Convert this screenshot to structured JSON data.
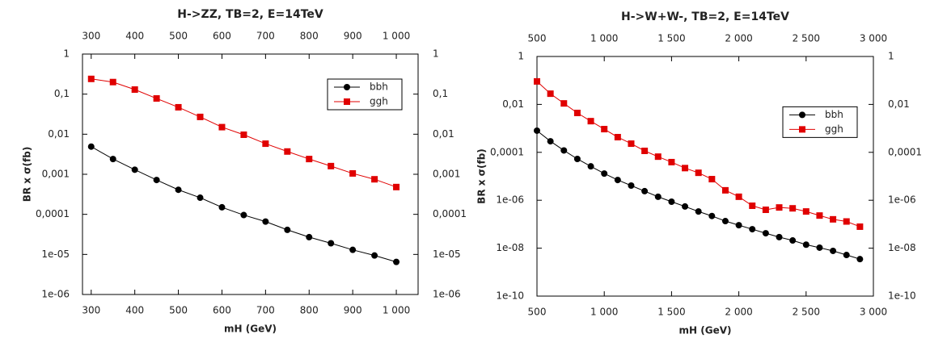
{
  "chart_data": [
    {
      "type": "line",
      "title": "H->ZZ, TB=2, E=14TeV",
      "x_label": "mH (GeV)",
      "y_label": "BR x σ(fb)",
      "x": [
        300,
        350,
        400,
        450,
        500,
        550,
        600,
        650,
        700,
        750,
        800,
        850,
        900,
        950,
        1000
      ],
      "series": [
        {
          "name": "bbh",
          "color": "#000000",
          "marker": "circle",
          "values": [
            0.0049,
            0.0024,
            0.0013,
            0.00072,
            0.00041,
            0.00026,
            0.00015,
            9.6e-05,
            6.6e-05,
            4.1e-05,
            2.7e-05,
            1.9e-05,
            1.3e-05,
            9.4e-06,
            6.5e-06
          ]
        },
        {
          "name": "ggh",
          "color": "#e00000",
          "marker": "square",
          "values": [
            0.24,
            0.2,
            0.13,
            0.078,
            0.047,
            0.027,
            0.015,
            0.0097,
            0.0058,
            0.0037,
            0.0024,
            0.0016,
            0.00105,
            0.00075,
            0.00048
          ]
        }
      ],
      "xlim": [
        280,
        1050
      ],
      "xticks": [
        300,
        400,
        500,
        600,
        700,
        800,
        900,
        {
          "value": 1000,
          "label": "1 000"
        }
      ],
      "ylim": [
        1e-06,
        1
      ],
      "log_y": true,
      "yticks": [
        {
          "value": 1e-06,
          "label": "1e-06"
        },
        {
          "value": 1e-05,
          "label": "1e-05"
        },
        {
          "value": 0.0001,
          "label": "0,0001"
        },
        {
          "value": 0.001,
          "label": "0,001"
        },
        {
          "value": 0.01,
          "label": "0,01"
        },
        {
          "value": 0.1,
          "label": "0,1"
        },
        1
      ],
      "legend": "upper right",
      "grid": false
    },
    {
      "type": "line",
      "title": "H->W+W-, TB=2, E=14TeV",
      "x_label": "mH (GeV)",
      "y_label": "BR x σ(fb)",
      "x": [
        500,
        600,
        700,
        800,
        900,
        1000,
        1100,
        1200,
        1300,
        1400,
        1500,
        1600,
        1700,
        1800,
        1900,
        2000,
        2100,
        2200,
        2300,
        2400,
        2500,
        2600,
        2700,
        2800,
        2900
      ],
      "series": [
        {
          "name": "bbh",
          "color": "#000000",
          "marker": "circle",
          "values": [
            0.0008,
            0.00029,
            0.00012,
            5.3e-05,
            2.6e-05,
            1.3e-05,
            7e-06,
            4.1e-06,
            2.4e-06,
            1.4e-06,
            8.7e-07,
            5.5e-07,
            3.4e-07,
            2.2e-07,
            1.35e-07,
            9.1e-08,
            6.2e-08,
            4.2e-08,
            2.9e-08,
            2.1e-08,
            1.4e-08,
            1.05e-08,
            7.7e-09,
            5.2e-09,
            3.5e-09
          ]
        },
        {
          "name": "ggh",
          "color": "#e00000",
          "marker": "square",
          "values": [
            0.091,
            0.028,
            0.011,
            0.0044,
            0.002,
            0.00093,
            0.00043,
            0.00023,
            0.000115,
            6.6e-05,
            3.9e-05,
            2.2e-05,
            1.4e-05,
            7.6e-06,
            2.6e-06,
            1.4e-06,
            5.9e-07,
            4e-07,
            5e-07,
            4.6e-07,
            3.4e-07,
            2.3e-07,
            1.6e-07,
            1.3e-07,
            7.9e-08
          ]
        }
      ],
      "xlim": [
        500,
        3000
      ],
      "xticks": [
        500,
        {
          "value": 1000,
          "label": "1 000"
        },
        {
          "value": 1500,
          "label": "1 500"
        },
        {
          "value": 2000,
          "label": "2 000"
        },
        {
          "value": 2500,
          "label": "2 500"
        },
        {
          "value": 3000,
          "label": "3 000"
        }
      ],
      "ylim": [
        1e-10,
        1
      ],
      "log_y": true,
      "yticks": [
        {
          "value": 1e-10,
          "label": "1e-10"
        },
        {
          "value": 1e-08,
          "label": "1e-08"
        },
        {
          "value": 1e-06,
          "label": "1e-06"
        },
        {
          "value": 0.0001,
          "label": "0,0001"
        },
        {
          "value": 0.01,
          "label": "0,01"
        },
        1
      ],
      "legend": "center right",
      "grid": false
    }
  ]
}
